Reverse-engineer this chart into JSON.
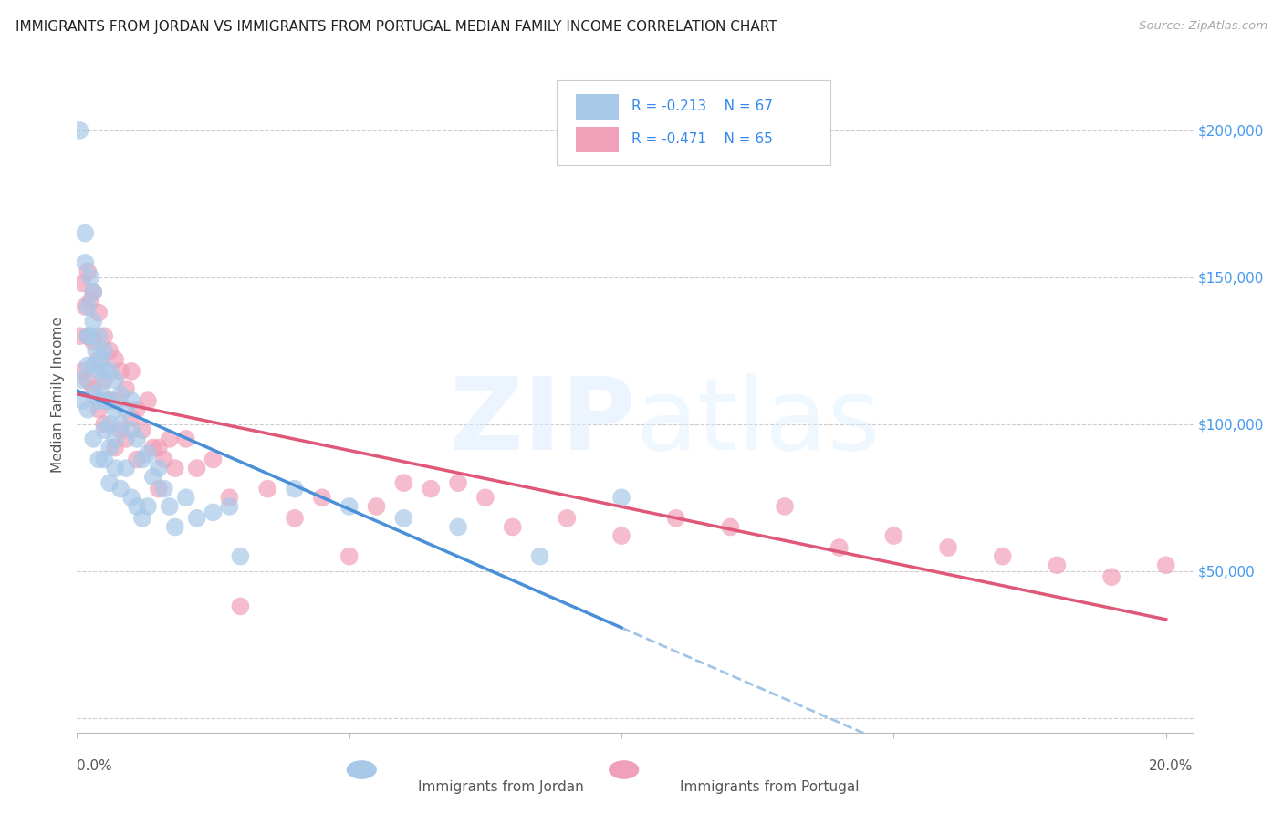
{
  "title": "IMMIGRANTS FROM JORDAN VS IMMIGRANTS FROM PORTUGAL MEDIAN FAMILY INCOME CORRELATION CHART",
  "source": "Source: ZipAtlas.com",
  "ylabel": "Median Family Income",
  "xlim": [
    0.0,
    0.205
  ],
  "ylim": [
    -5000,
    225000
  ],
  "yticks": [
    0,
    50000,
    100000,
    150000,
    200000
  ],
  "xticks": [
    0.0,
    0.05,
    0.1,
    0.15,
    0.2
  ],
  "jordan_color": "#a8c8e8",
  "portugal_color": "#f0a0b8",
  "jordan_line_color": "#4a90d9",
  "portugal_line_color": "#e05878",
  "dashed_line_color": "#a0c4e8",
  "watermark_zip": "ZIP",
  "watermark_atlas": "atlas",
  "jordan_R": -0.213,
  "jordan_N": 67,
  "portugal_R": -0.471,
  "portugal_N": 65,
  "jordan_scatter_x": [
    0.0005,
    0.001,
    0.001,
    0.0015,
    0.0015,
    0.002,
    0.002,
    0.002,
    0.002,
    0.0025,
    0.0025,
    0.003,
    0.003,
    0.003,
    0.003,
    0.003,
    0.0035,
    0.004,
    0.004,
    0.004,
    0.004,
    0.0045,
    0.0045,
    0.005,
    0.005,
    0.005,
    0.005,
    0.005,
    0.006,
    0.006,
    0.006,
    0.006,
    0.006,
    0.007,
    0.007,
    0.007,
    0.007,
    0.008,
    0.008,
    0.008,
    0.009,
    0.009,
    0.01,
    0.01,
    0.01,
    0.011,
    0.011,
    0.012,
    0.012,
    0.013,
    0.013,
    0.014,
    0.015,
    0.016,
    0.017,
    0.018,
    0.02,
    0.022,
    0.025,
    0.028,
    0.03,
    0.04,
    0.05,
    0.06,
    0.07,
    0.085,
    0.1
  ],
  "jordan_scatter_y": [
    200000,
    115000,
    108000,
    165000,
    155000,
    140000,
    130000,
    120000,
    105000,
    150000,
    130000,
    145000,
    135000,
    120000,
    110000,
    95000,
    125000,
    130000,
    118000,
    108000,
    88000,
    122000,
    112000,
    125000,
    118000,
    108000,
    98000,
    88000,
    118000,
    108000,
    100000,
    92000,
    80000,
    115000,
    105000,
    95000,
    85000,
    110000,
    100000,
    78000,
    105000,
    85000,
    108000,
    98000,
    75000,
    95000,
    72000,
    88000,
    68000,
    90000,
    72000,
    82000,
    85000,
    78000,
    72000,
    65000,
    75000,
    68000,
    70000,
    72000,
    55000,
    78000,
    72000,
    68000,
    65000,
    55000,
    75000
  ],
  "portugal_scatter_x": [
    0.0005,
    0.001,
    0.001,
    0.0015,
    0.002,
    0.002,
    0.002,
    0.0025,
    0.003,
    0.003,
    0.003,
    0.004,
    0.004,
    0.004,
    0.005,
    0.005,
    0.005,
    0.006,
    0.006,
    0.007,
    0.007,
    0.007,
    0.008,
    0.008,
    0.009,
    0.009,
    0.01,
    0.01,
    0.011,
    0.011,
    0.012,
    0.013,
    0.014,
    0.015,
    0.015,
    0.016,
    0.017,
    0.018,
    0.02,
    0.022,
    0.025,
    0.028,
    0.03,
    0.035,
    0.04,
    0.045,
    0.05,
    0.055,
    0.06,
    0.065,
    0.07,
    0.075,
    0.08,
    0.09,
    0.1,
    0.11,
    0.12,
    0.13,
    0.14,
    0.15,
    0.16,
    0.17,
    0.18,
    0.19,
    0.2
  ],
  "portugal_scatter_y": [
    130000,
    148000,
    118000,
    140000,
    152000,
    130000,
    115000,
    142000,
    145000,
    128000,
    112000,
    138000,
    122000,
    105000,
    130000,
    115000,
    100000,
    125000,
    108000,
    122000,
    108000,
    92000,
    118000,
    98000,
    112000,
    95000,
    118000,
    102000,
    105000,
    88000,
    98000,
    108000,
    92000,
    92000,
    78000,
    88000,
    95000,
    85000,
    95000,
    85000,
    88000,
    75000,
    38000,
    78000,
    68000,
    75000,
    55000,
    72000,
    80000,
    78000,
    80000,
    75000,
    65000,
    68000,
    62000,
    68000,
    65000,
    72000,
    58000,
    62000,
    58000,
    55000,
    52000,
    48000,
    52000
  ]
}
